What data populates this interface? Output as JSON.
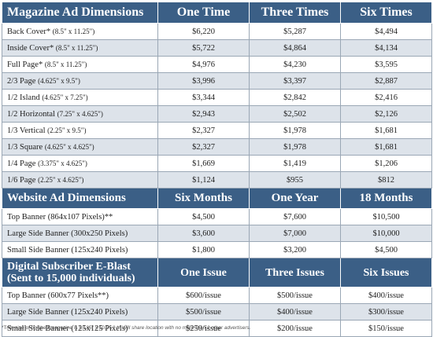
{
  "magazine": {
    "header": {
      "title": "Magazine Ad Dimensions",
      "col1": "One Time",
      "col2": "Three Times",
      "col3": "Six Times"
    },
    "rows": [
      {
        "name": "Back Cover*",
        "dims": "(8.5\" x 11.25\")",
        "values": [
          "$6,220",
          "$5,287",
          "$4,494"
        ]
      },
      {
        "name": "Inside Cover*",
        "dims": "(8.5\" x 11.25\")",
        "values": [
          "$5,722",
          "$4,864",
          "$4,134"
        ]
      },
      {
        "name": "Full Page*",
        "dims": "(8.5\" x 11.25\")",
        "values": [
          "$4,976",
          "$4,230",
          "$3,595"
        ]
      },
      {
        "name": "2/3 Page",
        "dims": "(4.625\" x 9.5\")",
        "values": [
          "$3,996",
          "$3,397",
          "$2,887"
        ]
      },
      {
        "name": "1/2 Island",
        "dims": "(4.625\" x 7.25\")",
        "values": [
          "$3,344",
          "$2,842",
          "$2,416"
        ]
      },
      {
        "name": "1/2 Horizontal",
        "dims": "(7.25\" x 4.625\")",
        "values": [
          "$2,943",
          "$2,502",
          "$2,126"
        ]
      },
      {
        "name": "1/3 Vertical",
        "dims": "(2.25\" x 9.5\")",
        "values": [
          "$2,327",
          "$1,978",
          "$1,681"
        ]
      },
      {
        "name": "1/3 Square",
        "dims": "(4.625\" x 4.625\")",
        "values": [
          "$2,327",
          "$1,978",
          "$1,681"
        ]
      },
      {
        "name": "1/4 Page",
        "dims": "(3.375\" x 4.625\")",
        "values": [
          "$1,669",
          "$1,419",
          "$1,206"
        ]
      },
      {
        "name": "1/6 Page",
        "dims": "(2.25\" x 4.625\")",
        "values": [
          "$1,124",
          "$955",
          "$812"
        ]
      }
    ]
  },
  "website": {
    "header": {
      "title": "Website Ad Dimensions",
      "col1": "Six Months",
      "col2": "One Year",
      "col3": "18 Months"
    },
    "rows": [
      {
        "name": "Top Banner (864x107 Pixels)**",
        "values": [
          "$4,500",
          "$7,600",
          "$10,500"
        ]
      },
      {
        "name": "Large Side Banner (300x250 Pixels)",
        "values": [
          "$3,600",
          "$7,000",
          "$10,000"
        ]
      },
      {
        "name": "Small Side Banner (125x240 Pixels)",
        "values": [
          "$1,800",
          "$3,200",
          "$4,500"
        ]
      }
    ]
  },
  "eblast": {
    "header": {
      "title_line1": "Digital Subscriber E-Blast",
      "title_line2": "(Sent to 15,000 individuals)",
      "col1": "One Issue",
      "col2": "Three Issues",
      "col3": "Six Issues"
    },
    "rows": [
      {
        "name": "Top Banner (600x77 Pixels**)",
        "values": [
          "$600/issue",
          "$500/issue",
          "$400/issue"
        ]
      },
      {
        "name": "Large Side Banner (125x240 Pixels)",
        "values": [
          "$500/issue",
          "$400/issue",
          "$300/issue"
        ]
      },
      {
        "name": "Small Side Banner (125x125 Pixels)",
        "values": [
          "$250/issue",
          "$200/issue",
          "$150/issue"
        ]
      }
    ]
  },
  "footnote": {
    "part1": "*Trim size of finished magazine is 8.125\" x 10.75.\"",
    "part2": "** Will share location with no more than 2 other advertisers."
  }
}
